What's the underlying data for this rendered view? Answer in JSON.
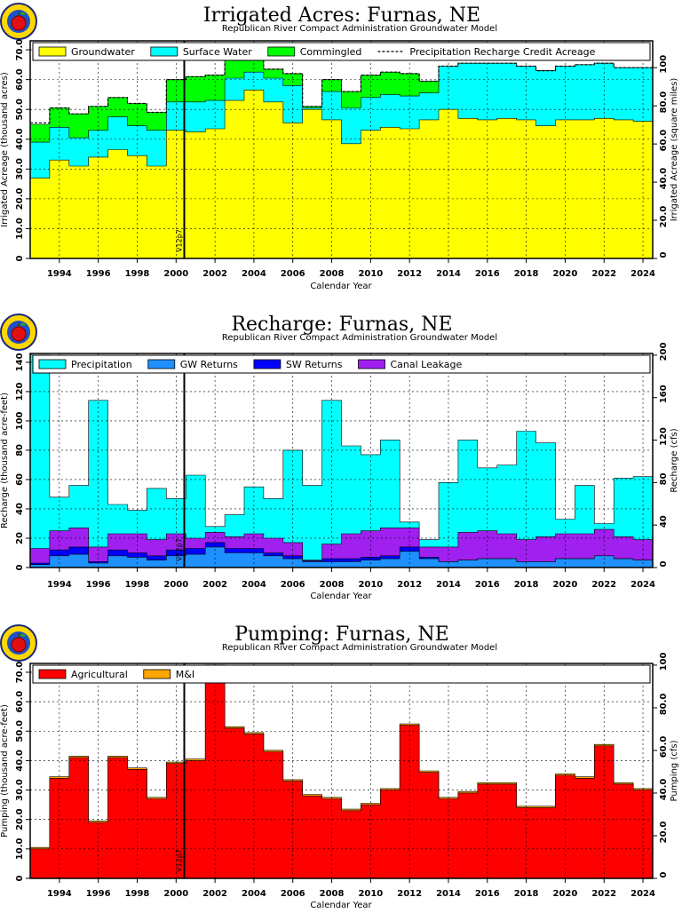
{
  "charts": [
    {
      "title": "Irrigated  Acres:  Furnas,  NE",
      "subtitle": "Republican  River  Compact  Administration  Groundwater  Model",
      "xlabel": "Calendar  Year",
      "ylabel_left": "Irrigated  Acreage  (thousand  acres)",
      "ylabel_right": "Irrigated  Acreage  (square  miles)",
      "marker_label": "V12p7",
      "legend": [
        {
          "label": "Groundwater",
          "color": "#ffff00",
          "kind": "box"
        },
        {
          "label": "Surface  Water",
          "color": "#00ffff",
          "kind": "box"
        },
        {
          "label": "Commingled",
          "color": "#00ff00",
          "kind": "box"
        },
        {
          "label": "Precipitation  Recharge  Credit  Acreage",
          "color": "#000000",
          "kind": "dash"
        }
      ],
      "left_ticks": [
        "0",
        "10.0",
        "20.0",
        "30.0",
        "40.0",
        "50.0",
        "60.0",
        "70.0"
      ],
      "right_ticks": [
        "0",
        "20.0",
        "40.0",
        "60.0",
        "80.0",
        "100"
      ]
    },
    {
      "title": "Recharge:  Furnas,  NE",
      "subtitle": "Republican  River  Compact  Administration  Groundwater  Model",
      "xlabel": "Calendar  Year",
      "ylabel_left": "Recharge  (thousand  acre-feet)",
      "ylabel_right": "Recharge  (cfs)",
      "marker_label": "V12p7",
      "legend": [
        {
          "label": "Precipitation",
          "color": "#00ffff",
          "kind": "box"
        },
        {
          "label": "GW  Returns",
          "color": "#1e90ff",
          "kind": "box"
        },
        {
          "label": "SW  Returns",
          "color": "#0000ff",
          "kind": "box"
        },
        {
          "label": "Canal  Leakage",
          "color": "#a020f0",
          "kind": "box"
        }
      ],
      "left_ticks": [
        "0",
        "20",
        "40",
        "60",
        "80",
        "100",
        "120",
        "140"
      ],
      "right_ticks": [
        "0",
        "40",
        "80",
        "120",
        "160",
        "200"
      ]
    },
    {
      "title": "Pumping:  Furnas,  NE",
      "subtitle": "Republican  River  Compact  Administration  Groundwater  Model",
      "xlabel": "Calendar  Year",
      "ylabel_left": "Pumping  (thousand  acre-feet)",
      "ylabel_right": "Pumping  (cfs)",
      "marker_label": "V12p7",
      "legend": [
        {
          "label": "Agricultural",
          "color": "#ff0000",
          "kind": "box"
        },
        {
          "label": "M&I",
          "color": "#ffa500",
          "kind": "box"
        }
      ],
      "left_ticks": [
        "0",
        "10.0",
        "20.0",
        "30.0",
        "40.0",
        "50.0",
        "60.0",
        "70.0"
      ],
      "right_ticks": [
        "0",
        "20.0",
        "40.0",
        "60.0",
        "80.0",
        "100"
      ]
    }
  ],
  "chart_data": [
    {
      "type": "area",
      "stacked": true,
      "step": true,
      "title": "Irrigated  Acres:  Furnas,  NE",
      "xlabel": "Calendar  Year",
      "ylabel": "Irrigated  Acreage  (thousand  acres)",
      "xlim": [
        1993,
        2025
      ],
      "ylim": [
        0,
        73
      ],
      "x": [
        1993,
        1994,
        1995,
        1996,
        1997,
        1998,
        1999,
        2000,
        2001,
        2002,
        2003,
        2004,
        2005,
        2006,
        2007,
        2008,
        2009,
        2010,
        2011,
        2012,
        2013,
        2014,
        2015,
        2016,
        2017,
        2018,
        2019,
        2020,
        2021,
        2022,
        2023,
        2024
      ],
      "x_tick_labels": [
        "1994",
        "1996",
        "1998",
        "2000",
        "2002",
        "2004",
        "2006",
        "2008",
        "2010",
        "2012",
        "2014",
        "2016",
        "2018",
        "2020",
        "2022",
        "2024"
      ],
      "series": [
        {
          "name": "Groundwater",
          "color": "#ffff00",
          "values": [
            27,
            33,
            31,
            34,
            36.5,
            34.5,
            31,
            43,
            42.5,
            43.5,
            53,
            56.5,
            52.5,
            45.5,
            50,
            46.5,
            38.5,
            43,
            44,
            43.5,
            46.5,
            50,
            47,
            46.5,
            47,
            46.5,
            44.5,
            46.5,
            46.5,
            47,
            46.5,
            46
          ]
        },
        {
          "name": "Surface  Water",
          "color": "#00ffff",
          "values": [
            12,
            11,
            9.5,
            9,
            11,
            10,
            12,
            9.5,
            10,
            9.5,
            7.5,
            6,
            8,
            12.5,
            0.5,
            9.5,
            12,
            11,
            11,
            11,
            9,
            14.5,
            18.5,
            19,
            18.5,
            18,
            18.5,
            18,
            18.5,
            18.5,
            17.5,
            18
          ]
        },
        {
          "name": "Commingled",
          "color": "#00ff00",
          "values": [
            6,
            6.5,
            8,
            8,
            6.5,
            7.5,
            6,
            7.5,
            8.5,
            8.5,
            6,
            7,
            3,
            4,
            0.5,
            4,
            5.5,
            7.5,
            7.5,
            7.5,
            4,
            0,
            0,
            0,
            0,
            0,
            0,
            0,
            0,
            0,
            0,
            0
          ]
        }
      ],
      "precipitation_recharge_credit_acreage": [
        45.5,
        50.5,
        48.5,
        51,
        54,
        52,
        49,
        60,
        61,
        61.5,
        66.5,
        69.5,
        63.5,
        62,
        51,
        60,
        56,
        61.5,
        62.5,
        62,
        59.5,
        64.5,
        65.5,
        65.5,
        65.5,
        64.5,
        63,
        64.5,
        65,
        65.5,
        64,
        64
      ],
      "right_axis": {
        "label": "Irrigated  Acreage  (square  miles)",
        "ylim": [
          0,
          114.06
        ]
      }
    },
    {
      "type": "area",
      "stacked": true,
      "step": true,
      "title": "Recharge:  Furnas,  NE",
      "xlabel": "Calendar  Year",
      "ylabel": "Recharge  (thousand  acre-feet)",
      "xlim": [
        1993,
        2025
      ],
      "ylim": [
        0,
        146
      ],
      "x": [
        1993,
        1994,
        1995,
        1996,
        1997,
        1998,
        1999,
        2000,
        2001,
        2002,
        2003,
        2004,
        2005,
        2006,
        2007,
        2008,
        2009,
        2010,
        2011,
        2012,
        2013,
        2014,
        2015,
        2016,
        2017,
        2018,
        2019,
        2020,
        2021,
        2022,
        2023,
        2024
      ],
      "x_tick_labels": [
        "1994",
        "1996",
        "1998",
        "2000",
        "2002",
        "2004",
        "2006",
        "2008",
        "2010",
        "2012",
        "2014",
        "2016",
        "2018",
        "2020",
        "2022",
        "2024"
      ],
      "series": [
        {
          "name": "GW  Returns",
          "color": "#1e90ff",
          "values": [
            2,
            8,
            9,
            3,
            8,
            7,
            5,
            8,
            9,
            14,
            10,
            10,
            8,
            6,
            4,
            4,
            4,
            5,
            6,
            11,
            6,
            4,
            5,
            6,
            6,
            4,
            4,
            6,
            6,
            8,
            6,
            5
          ]
        },
        {
          "name": "SW  Returns",
          "color": "#0000ff",
          "values": [
            1,
            4,
            5,
            1,
            4,
            3,
            3,
            4,
            4,
            3,
            3,
            3,
            2,
            2,
            0.5,
            2,
            2,
            2,
            2,
            3,
            1,
            0,
            0,
            0,
            0,
            0,
            0,
            0,
            0,
            0,
            0,
            0
          ]
        },
        {
          "name": "Canal  Leakage",
          "color": "#a020f0",
          "values": [
            10,
            13,
            13,
            10,
            11,
            13,
            11,
            11,
            7,
            7,
            8,
            10,
            10,
            9,
            0.5,
            10,
            17,
            18,
            19,
            13,
            7,
            10,
            19,
            19,
            17,
            15,
            17,
            17,
            17,
            18,
            15,
            14
          ]
        },
        {
          "name": "Precipitation",
          "color": "#00ffff",
          "values": [
            132,
            23,
            29,
            100,
            20,
            16,
            35,
            24,
            43,
            4,
            15,
            32,
            27,
            63,
            51,
            98,
            60,
            52,
            60,
            4,
            5,
            44,
            63,
            43,
            47,
            74,
            64,
            10,
            33,
            4,
            40,
            43
          ]
        }
      ],
      "right_axis": {
        "label": "Recharge  (cfs)",
        "ylim": [
          0,
          201.6
        ]
      }
    },
    {
      "type": "area",
      "stacked": true,
      "step": true,
      "title": "Pumping:  Furnas,  NE",
      "xlabel": "Calendar  Year",
      "ylabel": "Pumping  (thousand  acre-feet)",
      "xlim": [
        1993,
        2025
      ],
      "ylim": [
        0,
        73
      ],
      "x": [
        1993,
        1994,
        1995,
        1996,
        1997,
        1998,
        1999,
        2000,
        2001,
        2002,
        2003,
        2004,
        2005,
        2006,
        2007,
        2008,
        2009,
        2010,
        2011,
        2012,
        2013,
        2014,
        2015,
        2016,
        2017,
        2018,
        2019,
        2020,
        2021,
        2022,
        2023,
        2024
      ],
      "x_tick_labels": [
        "1994",
        "1996",
        "1998",
        "2000",
        "2002",
        "2004",
        "2006",
        "2008",
        "2010",
        "2012",
        "2014",
        "2016",
        "2018",
        "2020",
        "2022",
        "2024"
      ],
      "series": [
        {
          "name": "Agricultural",
          "color": "#ff0000",
          "values": [
            10,
            34,
            41,
            19,
            41,
            37,
            27,
            39,
            40,
            72,
            51,
            49,
            43,
            33,
            28,
            27,
            23,
            25,
            30,
            52,
            36,
            27,
            29,
            32,
            32,
            24,
            24,
            35,
            34,
            45,
            32,
            30
          ]
        },
        {
          "name": "M&I",
          "color": "#ffa500",
          "values": [
            0.5,
            0.5,
            0.5,
            0.5,
            0.5,
            0.5,
            0.5,
            0.5,
            0.5,
            0.5,
            0.5,
            0.5,
            0.5,
            0.5,
            0.5,
            0.5,
            0.5,
            0.5,
            0.5,
            0.5,
            0.5,
            0.5,
            0.5,
            0.5,
            0.5,
            0.5,
            0.5,
            0.5,
            0.5,
            0.5,
            0.5,
            0.5
          ]
        }
      ],
      "right_axis": {
        "label": "Pumping  (cfs)",
        "ylim": [
          0,
          100.8
        ]
      }
    }
  ]
}
